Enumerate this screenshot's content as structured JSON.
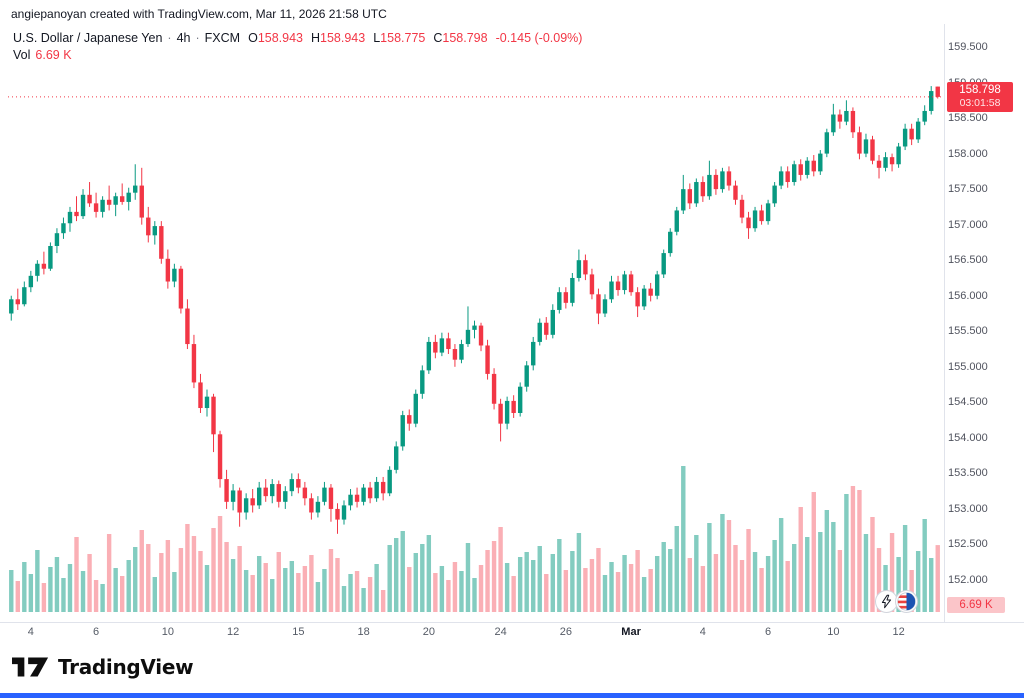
{
  "attribution": "angiepanoyan created with TradingView.com, Mar 11, 2026 21:58 UTC",
  "legend": {
    "symbol_title": "U.S. Dollar / Japanese Yen",
    "sep": "·",
    "interval": "4h",
    "exchange": "FXCM",
    "o_label": "O",
    "o_value": "158.943",
    "h_label": "H",
    "h_value": "158.943",
    "l_label": "L",
    "l_value": "158.775",
    "c_label": "C",
    "c_value": "158.798",
    "change": "-0.145 (-0.09%)",
    "vol_label": "Vol",
    "vol_value": "6.69 K"
  },
  "last_price": {
    "value": "158.798",
    "countdown": "03:01:58"
  },
  "volume_badge": {
    "value": "6.69 K"
  },
  "logo": {
    "text": "TradingView"
  },
  "colors": {
    "up": "#089981",
    "down": "#f23645",
    "vol_up": "rgba(8,153,129,0.5)",
    "vol_down": "rgba(242,54,69,0.4)",
    "axis_line": "#e0e3eb",
    "badge_bg": "#f23645",
    "vol_badge_bg": "#fbc5c9",
    "accent_blue": "#2962ff"
  },
  "chart_data": {
    "type": "candlestick",
    "title": "U.S. Dollar / Japanese Yen",
    "symbol": "USD/JPY",
    "interval": "4h",
    "exchange": "FXCM",
    "last_close": 158.798,
    "price_axis_ticks": [
      "159.500",
      "159.000",
      "158.500",
      "158.000",
      "157.500",
      "157.000",
      "156.500",
      "156.000",
      "155.500",
      "155.000",
      "154.500",
      "154.000",
      "153.500",
      "153.000",
      "152.500",
      "152.000"
    ],
    "price_range": [
      152.0,
      159.5
    ],
    "time_ticks": [
      {
        "i": 3,
        "label": "4"
      },
      {
        "i": 13,
        "label": "6"
      },
      {
        "i": 24,
        "label": "10"
      },
      {
        "i": 34,
        "label": "12"
      },
      {
        "i": 44,
        "label": "15"
      },
      {
        "i": 54,
        "label": "18"
      },
      {
        "i": 64,
        "label": "20"
      },
      {
        "i": 75,
        "label": "24"
      },
      {
        "i": 85,
        "label": "26"
      },
      {
        "i": 95,
        "label": "Mar",
        "major": true
      },
      {
        "i": 106,
        "label": "4"
      },
      {
        "i": 116,
        "label": "6"
      },
      {
        "i": 126,
        "label": "10"
      },
      {
        "i": 136,
        "label": "12"
      }
    ],
    "ohlc": [
      [
        155.75,
        156.0,
        155.65,
        155.95
      ],
      [
        155.95,
        156.1,
        155.8,
        155.88
      ],
      [
        155.88,
        156.2,
        155.85,
        156.12
      ],
      [
        156.12,
        156.35,
        156.05,
        156.28
      ],
      [
        156.28,
        156.5,
        156.2,
        156.45
      ],
      [
        156.45,
        156.62,
        156.3,
        156.38
      ],
      [
        156.38,
        156.75,
        156.35,
        156.7
      ],
      [
        156.7,
        156.95,
        156.6,
        156.88
      ],
      [
        156.88,
        157.1,
        156.8,
        157.02
      ],
      [
        157.02,
        157.25,
        156.9,
        157.18
      ],
      [
        157.18,
        157.4,
        157.05,
        157.12
      ],
      [
        157.12,
        157.5,
        157.08,
        157.42
      ],
      [
        157.42,
        157.6,
        157.25,
        157.3
      ],
      [
        157.3,
        157.45,
        157.1,
        157.18
      ],
      [
        157.18,
        157.4,
        157.1,
        157.35
      ],
      [
        157.35,
        157.55,
        157.2,
        157.28
      ],
      [
        157.28,
        157.45,
        157.12,
        157.4
      ],
      [
        157.4,
        157.58,
        157.28,
        157.32
      ],
      [
        157.32,
        157.52,
        157.2,
        157.45
      ],
      [
        157.45,
        157.85,
        157.35,
        157.55
      ],
      [
        157.55,
        157.8,
        157.0,
        157.1
      ],
      [
        157.1,
        157.25,
        156.75,
        156.85
      ],
      [
        156.85,
        157.05,
        156.72,
        156.98
      ],
      [
        156.98,
        157.05,
        156.45,
        156.52
      ],
      [
        156.52,
        156.65,
        156.1,
        156.2
      ],
      [
        156.2,
        156.45,
        156.12,
        156.38
      ],
      [
        156.38,
        156.42,
        155.75,
        155.82
      ],
      [
        155.82,
        155.95,
        155.25,
        155.32
      ],
      [
        155.32,
        155.45,
        154.7,
        154.78
      ],
      [
        154.78,
        154.9,
        154.35,
        154.42
      ],
      [
        154.42,
        154.68,
        154.3,
        154.58
      ],
      [
        154.58,
        154.62,
        153.8,
        154.05
      ],
      [
        154.05,
        154.1,
        153.3,
        153.42
      ],
      [
        153.42,
        153.55,
        153.0,
        153.1
      ],
      [
        153.1,
        153.35,
        152.98,
        153.26
      ],
      [
        153.26,
        153.3,
        152.75,
        152.95
      ],
      [
        152.95,
        153.22,
        152.85,
        153.15
      ],
      [
        153.15,
        153.28,
        152.95,
        153.05
      ],
      [
        153.05,
        153.38,
        153.0,
        153.3
      ],
      [
        153.3,
        153.42,
        153.1,
        153.18
      ],
      [
        153.18,
        153.42,
        153.08,
        153.35
      ],
      [
        153.35,
        153.4,
        153.02,
        153.1
      ],
      [
        153.1,
        153.32,
        153.0,
        153.25
      ],
      [
        153.25,
        153.5,
        153.18,
        153.42
      ],
      [
        153.42,
        153.5,
        153.22,
        153.3
      ],
      [
        153.3,
        153.38,
        153.05,
        153.15
      ],
      [
        153.15,
        153.22,
        152.85,
        152.95
      ],
      [
        152.95,
        153.18,
        152.88,
        153.1
      ],
      [
        153.1,
        153.38,
        153.05,
        153.3
      ],
      [
        153.3,
        153.35,
        152.82,
        153.0
      ],
      [
        153.0,
        153.08,
        152.65,
        152.85
      ],
      [
        152.85,
        153.12,
        152.78,
        153.05
      ],
      [
        153.05,
        153.28,
        152.98,
        153.2
      ],
      [
        153.2,
        153.3,
        153.02,
        153.1
      ],
      [
        153.1,
        153.35,
        153.05,
        153.3
      ],
      [
        153.3,
        153.38,
        153.08,
        153.15
      ],
      [
        153.15,
        153.45,
        153.1,
        153.38
      ],
      [
        153.38,
        153.45,
        153.12,
        153.22
      ],
      [
        153.22,
        153.6,
        153.18,
        153.55
      ],
      [
        153.55,
        153.95,
        153.5,
        153.88
      ],
      [
        153.88,
        154.38,
        153.82,
        154.32
      ],
      [
        154.32,
        154.4,
        154.1,
        154.2
      ],
      [
        154.2,
        154.68,
        154.15,
        154.62
      ],
      [
        154.62,
        155.02,
        154.55,
        154.95
      ],
      [
        154.95,
        155.42,
        154.9,
        155.35
      ],
      [
        155.35,
        155.45,
        155.12,
        155.2
      ],
      [
        155.2,
        155.48,
        155.15,
        155.4
      ],
      [
        155.4,
        155.48,
        155.18,
        155.25
      ],
      [
        155.25,
        155.32,
        155.0,
        155.1
      ],
      [
        155.1,
        155.38,
        155.05,
        155.32
      ],
      [
        155.32,
        155.85,
        155.28,
        155.52
      ],
      [
        155.52,
        155.65,
        155.4,
        155.58
      ],
      [
        155.58,
        155.62,
        155.22,
        155.3
      ],
      [
        155.3,
        155.38,
        154.82,
        154.9
      ],
      [
        154.9,
        154.98,
        154.4,
        154.48
      ],
      [
        154.48,
        154.55,
        153.95,
        154.2
      ],
      [
        154.2,
        154.58,
        154.12,
        154.52
      ],
      [
        154.52,
        154.6,
        154.28,
        154.35
      ],
      [
        154.35,
        154.78,
        154.3,
        154.72
      ],
      [
        154.72,
        155.08,
        154.65,
        155.02
      ],
      [
        155.02,
        155.42,
        154.95,
        155.35
      ],
      [
        155.35,
        155.68,
        155.3,
        155.62
      ],
      [
        155.62,
        155.7,
        155.38,
        155.45
      ],
      [
        155.45,
        155.88,
        155.4,
        155.8
      ],
      [
        155.8,
        156.12,
        155.75,
        156.05
      ],
      [
        156.05,
        156.12,
        155.82,
        155.9
      ],
      [
        155.9,
        156.32,
        155.85,
        156.25
      ],
      [
        156.25,
        156.65,
        156.2,
        156.5
      ],
      [
        156.5,
        156.58,
        156.22,
        156.3
      ],
      [
        156.3,
        156.38,
        155.95,
        156.02
      ],
      [
        156.02,
        156.1,
        155.6,
        155.75
      ],
      [
        155.75,
        156.02,
        155.7,
        155.95
      ],
      [
        155.95,
        156.28,
        155.9,
        156.2
      ],
      [
        156.2,
        156.28,
        156.0,
        156.08
      ],
      [
        156.08,
        156.35,
        156.02,
        156.3
      ],
      [
        156.3,
        156.35,
        156.0,
        156.05
      ],
      [
        156.05,
        156.12,
        155.7,
        155.85
      ],
      [
        155.85,
        156.15,
        155.8,
        156.1
      ],
      [
        156.1,
        156.18,
        155.92,
        156.0
      ],
      [
        156.0,
        156.35,
        155.95,
        156.3
      ],
      [
        156.3,
        156.65,
        156.25,
        156.6
      ],
      [
        156.6,
        156.95,
        156.55,
        156.9
      ],
      [
        156.9,
        157.25,
        156.85,
        157.2
      ],
      [
        157.2,
        157.7,
        157.15,
        157.5
      ],
      [
        157.5,
        157.58,
        157.22,
        157.3
      ],
      [
        157.3,
        157.65,
        157.25,
        157.6
      ],
      [
        157.6,
        157.68,
        157.32,
        157.4
      ],
      [
        157.4,
        157.9,
        157.35,
        157.7
      ],
      [
        157.7,
        157.78,
        157.42,
        157.5
      ],
      [
        157.5,
        157.8,
        157.45,
        157.75
      ],
      [
        157.75,
        157.82,
        157.48,
        157.55
      ],
      [
        157.55,
        157.62,
        157.28,
        157.35
      ],
      [
        157.35,
        157.42,
        157.02,
        157.1
      ],
      [
        157.1,
        157.18,
        156.8,
        156.95
      ],
      [
        156.95,
        157.25,
        156.9,
        157.2
      ],
      [
        157.2,
        157.28,
        157.0,
        157.05
      ],
      [
        157.05,
        157.35,
        157.0,
        157.3
      ],
      [
        157.3,
        157.6,
        157.25,
        157.55
      ],
      [
        157.55,
        157.82,
        157.5,
        157.75
      ],
      [
        157.75,
        157.82,
        157.52,
        157.6
      ],
      [
        157.6,
        157.9,
        157.55,
        157.85
      ],
      [
        157.85,
        157.92,
        157.62,
        157.7
      ],
      [
        157.7,
        157.95,
        157.65,
        157.9
      ],
      [
        157.9,
        157.98,
        157.68,
        157.75
      ],
      [
        157.75,
        158.05,
        157.7,
        158.0
      ],
      [
        158.0,
        158.35,
        157.95,
        158.3
      ],
      [
        158.3,
        158.7,
        158.25,
        158.55
      ],
      [
        158.55,
        158.62,
        158.35,
        158.45
      ],
      [
        158.45,
        158.75,
        158.4,
        158.6
      ],
      [
        158.6,
        158.65,
        158.22,
        158.3
      ],
      [
        158.3,
        158.38,
        157.92,
        158.0
      ],
      [
        158.0,
        158.28,
        157.95,
        158.2
      ],
      [
        158.2,
        158.25,
        157.85,
        157.9
      ],
      [
        157.9,
        157.98,
        157.65,
        157.8
      ],
      [
        157.8,
        158.02,
        157.75,
        157.95
      ],
      [
        157.95,
        158.0,
        157.75,
        157.85
      ],
      [
        157.85,
        158.15,
        157.8,
        158.1
      ],
      [
        158.1,
        158.42,
        158.05,
        158.35
      ],
      [
        158.35,
        158.42,
        158.12,
        158.2
      ],
      [
        158.2,
        158.5,
        158.15,
        158.45
      ],
      [
        158.45,
        158.68,
        158.4,
        158.6
      ],
      [
        158.6,
        158.95,
        158.55,
        158.88
      ],
      [
        158.943,
        158.943,
        158.775,
        158.798
      ]
    ],
    "volumes_k": [
      4.2,
      3.1,
      5.0,
      3.8,
      6.2,
      2.9,
      4.5,
      5.5,
      3.4,
      4.8,
      7.5,
      4.1,
      5.8,
      3.2,
      2.8,
      7.8,
      4.4,
      3.6,
      5.2,
      6.5,
      8.2,
      6.8,
      3.5,
      5.9,
      7.2,
      4.0,
      6.4,
      8.8,
      7.6,
      6.1,
      4.7,
      8.4,
      9.6,
      7.0,
      5.3,
      6.6,
      4.2,
      3.7,
      5.6,
      4.9,
      3.3,
      6.0,
      4.4,
      5.1,
      3.9,
      4.6,
      5.7,
      3.0,
      4.3,
      6.3,
      5.4,
      2.6,
      3.8,
      4.1,
      2.4,
      3.5,
      4.8,
      2.2,
      6.7,
      7.4,
      8.1,
      4.5,
      5.9,
      6.8,
      7.7,
      3.9,
      4.6,
      3.2,
      5.0,
      4.1,
      6.9,
      3.4,
      4.7,
      6.2,
      7.1,
      8.5,
      4.9,
      3.6,
      5.5,
      6.0,
      5.2,
      6.6,
      3.8,
      5.8,
      7.3,
      4.2,
      6.1,
      7.9,
      4.4,
      5.3,
      6.4,
      3.7,
      5.0,
      4.0,
      5.7,
      4.8,
      6.2,
      3.5,
      4.3,
      5.6,
      7.0,
      6.3,
      8.6,
      14.6,
      5.4,
      7.7,
      4.6,
      8.9,
      5.8,
      9.8,
      9.2,
      6.7,
      5.2,
      8.3,
      6.0,
      4.4,
      5.6,
      7.2,
      9.4,
      5.1,
      6.8,
      10.5,
      7.5,
      12.0,
      8.0,
      10.2,
      9.0,
      6.2,
      11.8,
      12.6,
      12.2,
      7.8,
      9.5,
      6.4,
      4.7,
      7.9,
      5.5,
      8.7,
      4.2,
      6.1,
      9.3,
      5.4,
      6.69
    ],
    "last_volume_label": "6.69 K"
  }
}
